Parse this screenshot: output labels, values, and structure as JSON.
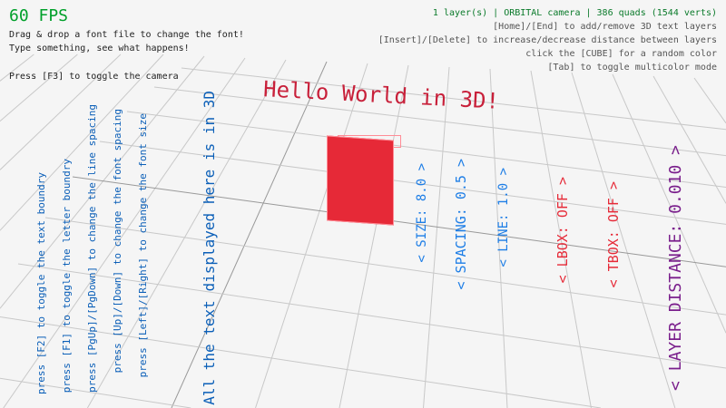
{
  "hud": {
    "fps": "60 FPS",
    "left_lines": [
      "Drag & drop a font file to change the font!",
      "Type something, see what happens!",
      "Press [F3] to toggle the camera"
    ],
    "status": "1 layer(s) | ORBITAL camera |  386 quads (1544 verts)",
    "right_lines": [
      "[Home]/[End] to add/remove 3D text layers",
      "[Insert]/[Delete] to increase/decrease distance between layers",
      "click the [CUBE] for a random color",
      "[Tab] to toggle multicolor mode"
    ]
  },
  "scene": {
    "hello": "Hello World in 3D!",
    "main_text": "All the text displayed here is in 3D",
    "help_lines": [
      "press [F2] to toggle the text boundry",
      "press [F1] to toggle the letter boundry",
      "press [PgUp]/[PgDown] to change the line spacing",
      "press [Up]/[Down] to change the font spacing",
      "press [Left]/[Right] to change the font size"
    ],
    "options": [
      {
        "label": "< SIZE: 8.0 >",
        "color": "#1e7ee6"
      },
      {
        "label": "< SPACING: 0.5 >",
        "color": "#1e7ee6"
      },
      {
        "label": "< LINE: 1.0 >",
        "color": "#1e7ee6"
      },
      {
        "label": "< LBOX: OFF >",
        "color": "#e62937"
      },
      {
        "label": "< TBOX: OFF >",
        "color": "#e62937"
      },
      {
        "label": "< LAYER DISTANCE: 0.010 >",
        "color": "#7a1f8c"
      }
    ],
    "cube_color": "#e62937"
  }
}
